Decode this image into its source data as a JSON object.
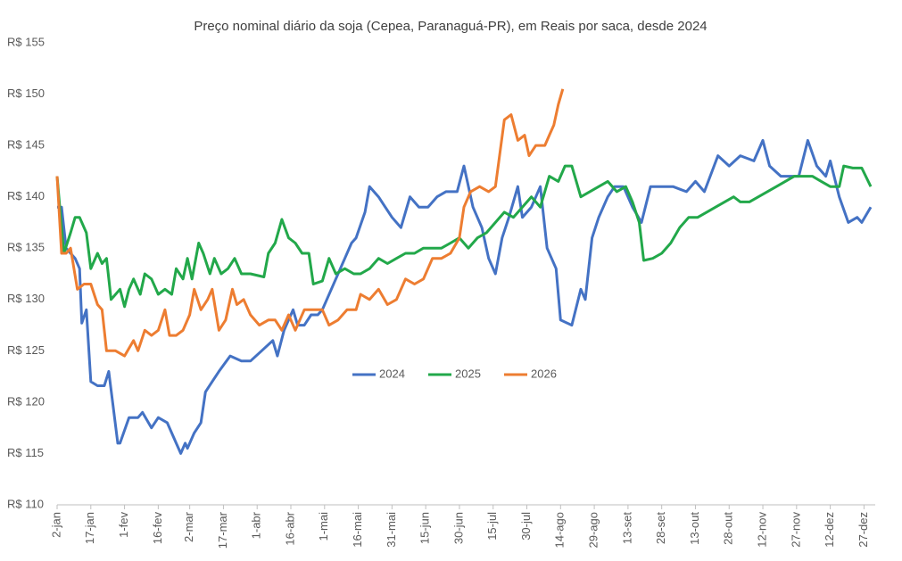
{
  "chart_data": {
    "type": "line",
    "title": "Preço nominal diário da soja (Cepea, Paranaguá-PR), em Reais por saca, desde 2024",
    "xlim": [
      2,
      366
    ],
    "xticks": [
      {
        "value": 2,
        "label": "2-jan"
      },
      {
        "value": 17,
        "label": "17-jan"
      },
      {
        "value": 32,
        "label": "1-fev"
      },
      {
        "value": 47,
        "label": "16-fev"
      },
      {
        "value": 61,
        "label": "2-mar"
      },
      {
        "value": 76,
        "label": "17-mar"
      },
      {
        "value": 91,
        "label": "1-abr"
      },
      {
        "value": 106,
        "label": "16-abr"
      },
      {
        "value": 121,
        "label": "1-mai"
      },
      {
        "value": 136,
        "label": "16-mai"
      },
      {
        "value": 151,
        "label": "31-mai"
      },
      {
        "value": 166,
        "label": "15-jun"
      },
      {
        "value": 181,
        "label": "30-jun"
      },
      {
        "value": 196,
        "label": "15-jul"
      },
      {
        "value": 211,
        "label": "30-jul"
      },
      {
        "value": 226,
        "label": "14-ago"
      },
      {
        "value": 241,
        "label": "29-ago"
      },
      {
        "value": 256,
        "label": "13-set"
      },
      {
        "value": 271,
        "label": "28-set"
      },
      {
        "value": 286,
        "label": "13-out"
      },
      {
        "value": 301,
        "label": "28-out"
      },
      {
        "value": 316,
        "label": "12-nov"
      },
      {
        "value": 331,
        "label": "27-nov"
      },
      {
        "value": 346,
        "label": "12-dez"
      },
      {
        "value": 361,
        "label": "27-dez"
      }
    ],
    "ylim": [
      110,
      155
    ],
    "yticks": [
      {
        "value": 110,
        "label": "R$ 110"
      },
      {
        "value": 115,
        "label": "R$ 115"
      },
      {
        "value": 120,
        "label": "R$ 120"
      },
      {
        "value": 125,
        "label": "R$ 125"
      },
      {
        "value": 130,
        "label": "R$ 130"
      },
      {
        "value": 135,
        "label": "R$ 135"
      },
      {
        "value": 140,
        "label": "R$ 140"
      },
      {
        "value": 145,
        "label": "R$ 145"
      },
      {
        "value": 150,
        "label": "R$ 150"
      },
      {
        "value": 155,
        "label": "R$ 155"
      }
    ],
    "grid": false,
    "legend": "center",
    "series": [
      {
        "name": "2024",
        "color": "#4472c4",
        "x": [
          2,
          4,
          6,
          8,
          10,
          12,
          13,
          15,
          17,
          20,
          23,
          25,
          29,
          30,
          34,
          38,
          40,
          44,
          47,
          51,
          55,
          57,
          59,
          60,
          63,
          66,
          68,
          71,
          74,
          79,
          84,
          88,
          93,
          98,
          100,
          103,
          107,
          109,
          112,
          115,
          118,
          120,
          126,
          130,
          133,
          135,
          139,
          141,
          145,
          148,
          151,
          155,
          159,
          163,
          167,
          171,
          175,
          180,
          183,
          187,
          191,
          194,
          197,
          200,
          203,
          207,
          209,
          213,
          217,
          220,
          224,
          226,
          231,
          235,
          237,
          240,
          243,
          247,
          250,
          254,
          258,
          262,
          266,
          270,
          276,
          282,
          286,
          290,
          296,
          301,
          306,
          312,
          316,
          319,
          324,
          332,
          336,
          340,
          344,
          346,
          350,
          354,
          358,
          360,
          364
        ],
        "values": [
          139,
          139,
          135,
          134.5,
          134,
          133,
          127.7,
          129,
          122,
          121.6,
          121.6,
          123,
          116,
          116,
          118.5,
          118.5,
          119,
          117.5,
          118.5,
          118,
          116,
          115,
          116,
          115.5,
          117,
          118,
          121,
          122,
          123,
          124.5,
          124,
          124,
          125,
          126,
          124.5,
          127,
          129,
          127.5,
          127.5,
          128.5,
          128.5,
          129,
          132,
          134,
          135.5,
          136,
          138.5,
          141,
          140,
          139,
          138,
          137,
          140,
          139,
          139,
          140,
          140.5,
          140.5,
          143,
          139,
          137,
          134,
          132.5,
          136,
          138,
          141,
          138,
          139,
          141,
          135,
          133,
          128,
          127.5,
          131,
          130,
          136,
          138,
          140,
          141,
          141,
          139,
          137.5,
          141,
          141,
          141,
          140.5,
          141.5,
          140.5,
          144,
          143,
          144,
          143.5,
          145.5,
          143,
          142,
          142,
          145.5,
          143,
          142,
          143.5,
          140,
          137.5,
          138,
          137.5,
          139
        ]
      },
      {
        "name": "2025",
        "color": "#22a84a",
        "x": [
          2,
          4,
          5,
          8,
          10,
          12,
          15,
          17,
          20,
          22,
          24,
          26,
          30,
          32,
          34,
          36,
          39,
          41,
          44,
          47,
          50,
          53,
          55,
          58,
          60,
          62,
          65,
          67,
          70,
          72,
          75,
          78,
          81,
          84,
          88,
          94,
          96,
          99,
          102,
          105,
          108,
          111,
          114,
          116,
          120,
          123,
          126,
          130,
          134,
          137,
          141,
          145,
          149,
          153,
          157,
          161,
          165,
          169,
          173,
          177,
          181,
          185,
          189,
          193,
          197,
          201,
          205,
          209,
          213,
          217,
          221,
          225,
          228,
          231,
          235,
          239,
          243,
          247,
          251,
          255,
          258,
          261,
          263,
          267,
          271,
          275,
          279,
          283,
          287,
          291,
          295,
          299,
          303,
          306,
          310,
          314,
          318,
          322,
          326,
          330,
          334,
          338,
          342,
          346,
          350,
          352,
          356,
          360,
          364
        ],
        "values": [
          142,
          137,
          134.5,
          136.5,
          138,
          138,
          136.5,
          133,
          134.5,
          133.5,
          134,
          130,
          131,
          129.3,
          131,
          132,
          130.5,
          132.5,
          132,
          130.5,
          131,
          130.5,
          133,
          132,
          134,
          132,
          135.5,
          134.5,
          132.5,
          134,
          132.5,
          133,
          134,
          132.5,
          132.5,
          132.2,
          134.5,
          135.5,
          137.8,
          136,
          135.5,
          134.5,
          134.5,
          131.5,
          131.8,
          134,
          132.5,
          133,
          132.5,
          132.5,
          133,
          134,
          133.5,
          134,
          134.5,
          134.5,
          135,
          135,
          135,
          135.5,
          136,
          135,
          136,
          136.5,
          137.5,
          138.5,
          138,
          139,
          140,
          139,
          142,
          141.5,
          143,
          143,
          140,
          140.5,
          141,
          141.5,
          140.5,
          141,
          139.5,
          137.5,
          133.8,
          134,
          134.5,
          135.5,
          137,
          138,
          138,
          138.5,
          139,
          139.5,
          140,
          139.5,
          139.5,
          140,
          140.5,
          141,
          141.5,
          142,
          142,
          142,
          141.5,
          141,
          141,
          143,
          142.8,
          142.8,
          141
        ]
      },
      {
        "name": "2026",
        "color": "#ed7d31",
        "x": [
          2,
          4,
          6,
          8,
          11,
          14,
          17,
          20,
          22,
          24,
          28,
          32,
          36,
          38,
          41,
          44,
          47,
          50,
          52,
          55,
          58,
          61,
          63,
          66,
          69,
          71,
          74,
          77,
          80,
          82,
          85,
          88,
          92,
          96,
          99,
          102,
          105,
          108,
          112,
          116,
          120,
          123,
          127,
          131,
          135,
          137,
          141,
          145,
          149,
          153,
          157,
          161,
          165,
          169,
          173,
          177,
          181,
          183,
          186,
          190,
          194,
          197,
          201,
          204,
          207,
          210,
          212,
          215,
          219,
          221,
          223,
          225,
          227
        ],
        "values": [
          142,
          134.5,
          134.5,
          135,
          131,
          131.5,
          131.5,
          129.5,
          129,
          125,
          125,
          124.5,
          126,
          125,
          127,
          126.5,
          127,
          129,
          126.5,
          126.5,
          127,
          128.5,
          131,
          129,
          130,
          131,
          127,
          128,
          131,
          129.5,
          130,
          128.5,
          127.5,
          128,
          128,
          127,
          128.5,
          127,
          129,
          129,
          129,
          127.5,
          128,
          129,
          129,
          130.5,
          130,
          131,
          129.5,
          130,
          132,
          131.5,
          132,
          134,
          134,
          134.5,
          136,
          139,
          140.5,
          141,
          140.5,
          141,
          147.5,
          148,
          145.5,
          146,
          144,
          145,
          145,
          146,
          147,
          149,
          150.5
        ]
      }
    ]
  }
}
